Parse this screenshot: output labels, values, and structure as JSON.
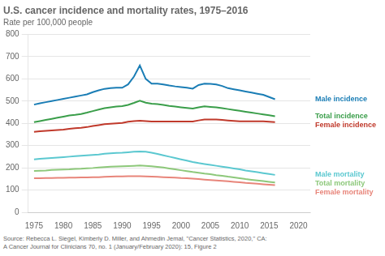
{
  "chart_data": {
    "type": "line",
    "title": "U.S. cancer incidence and mortality rates, 1975–2016",
    "subtitle": "Rate per 100,000 people",
    "source": "Source: Rebecca L. Siegel, Kimberly D. Miller, and Ahmedin Jemal, \"Cancer Statistics, 2020,\" CA:\nA Cancer Journal for Clinicians 70, no. 1 (January/February 2020): 15, Figure 2",
    "x": [
      1975,
      1976,
      1977,
      1978,
      1979,
      1980,
      1981,
      1982,
      1983,
      1984,
      1985,
      1986,
      1987,
      1988,
      1989,
      1990,
      1991,
      1992,
      1993,
      1994,
      1995,
      1996,
      1997,
      1998,
      1999,
      2000,
      2001,
      2002,
      2003,
      2004,
      2005,
      2006,
      2007,
      2008,
      2009,
      2010,
      2011,
      2012,
      2013,
      2014,
      2015,
      2016
    ],
    "series": [
      {
        "name": "Male incidence",
        "color": "#1a7db5",
        "values": [
          484,
          490,
          495,
          500,
          505,
          510,
          515,
          520,
          525,
          530,
          540,
          548,
          555,
          558,
          560,
          560,
          575,
          610,
          660,
          600,
          578,
          578,
          575,
          570,
          566,
          563,
          560,
          556,
          572,
          578,
          577,
          575,
          568,
          558,
          553,
          548,
          543,
          538,
          533,
          528,
          518,
          508
        ]
      },
      {
        "name": "Total incidence",
        "color": "#3a9e4a",
        "values": [
          405,
          410,
          415,
          420,
          425,
          430,
          435,
          438,
          442,
          448,
          455,
          462,
          468,
          472,
          475,
          477,
          483,
          492,
          502,
          493,
          488,
          486,
          483,
          478,
          475,
          472,
          469,
          466,
          472,
          476,
          474,
          472,
          468,
          464,
          460,
          456,
          452,
          448,
          444,
          440,
          436,
          432
        ]
      },
      {
        "name": "Female incidence",
        "color": "#c0392b",
        "values": [
          362,
          364,
          366,
          368,
          370,
          372,
          375,
          378,
          380,
          383,
          388,
          392,
          396,
          398,
          400,
          402,
          407,
          410,
          412,
          410,
          408,
          408,
          408,
          408,
          408,
          408,
          408,
          408,
          413,
          417,
          417,
          417,
          415,
          413,
          411,
          409,
          409,
          409,
          409,
          409,
          407,
          405
        ]
      },
      {
        "name": "Male mortality",
        "color": "#5bc8d0",
        "values": [
          238,
          240,
          242,
          244,
          246,
          248,
          250,
          252,
          254,
          256,
          258,
          260,
          263,
          265,
          267,
          268,
          270,
          272,
          273,
          272,
          268,
          262,
          256,
          250,
          244,
          238,
          232,
          226,
          221,
          217,
          213,
          209,
          205,
          201,
          197,
          193,
          188,
          184,
          180,
          176,
          172,
          168
        ]
      },
      {
        "name": "Total mortality",
        "color": "#8dc87a",
        "values": [
          186,
          187,
          188,
          190,
          191,
          192,
          193,
          195,
          196,
          198,
          199,
          201,
          203,
          205,
          206,
          207,
          208,
          209,
          210,
          209,
          207,
          204,
          201,
          197,
          193,
          189,
          185,
          181,
          178,
          174,
          171,
          167,
          164,
          160,
          157,
          153,
          149,
          146,
          143,
          140,
          137,
          134
        ]
      },
      {
        "name": "Female mortality",
        "color": "#e8857a",
        "values": [
          153,
          153,
          154,
          154,
          155,
          155,
          156,
          156,
          157,
          157,
          158,
          158,
          159,
          160,
          161,
          161,
          162,
          162,
          162,
          161,
          160,
          159,
          158,
          157,
          156,
          154,
          153,
          151,
          149,
          147,
          145,
          143,
          141,
          139,
          137,
          135,
          132,
          130,
          128,
          126,
          124,
          122
        ]
      }
    ],
    "xlim": [
      1974,
      2022
    ],
    "xticks": [
      1975,
      1980,
      1985,
      1990,
      1995,
      2000,
      2005,
      2010,
      2015,
      2020
    ],
    "ylim": [
      0,
      800
    ],
    "yticks": [
      0,
      100,
      200,
      300,
      400,
      500,
      600,
      700,
      800
    ],
    "grid": "y"
  }
}
